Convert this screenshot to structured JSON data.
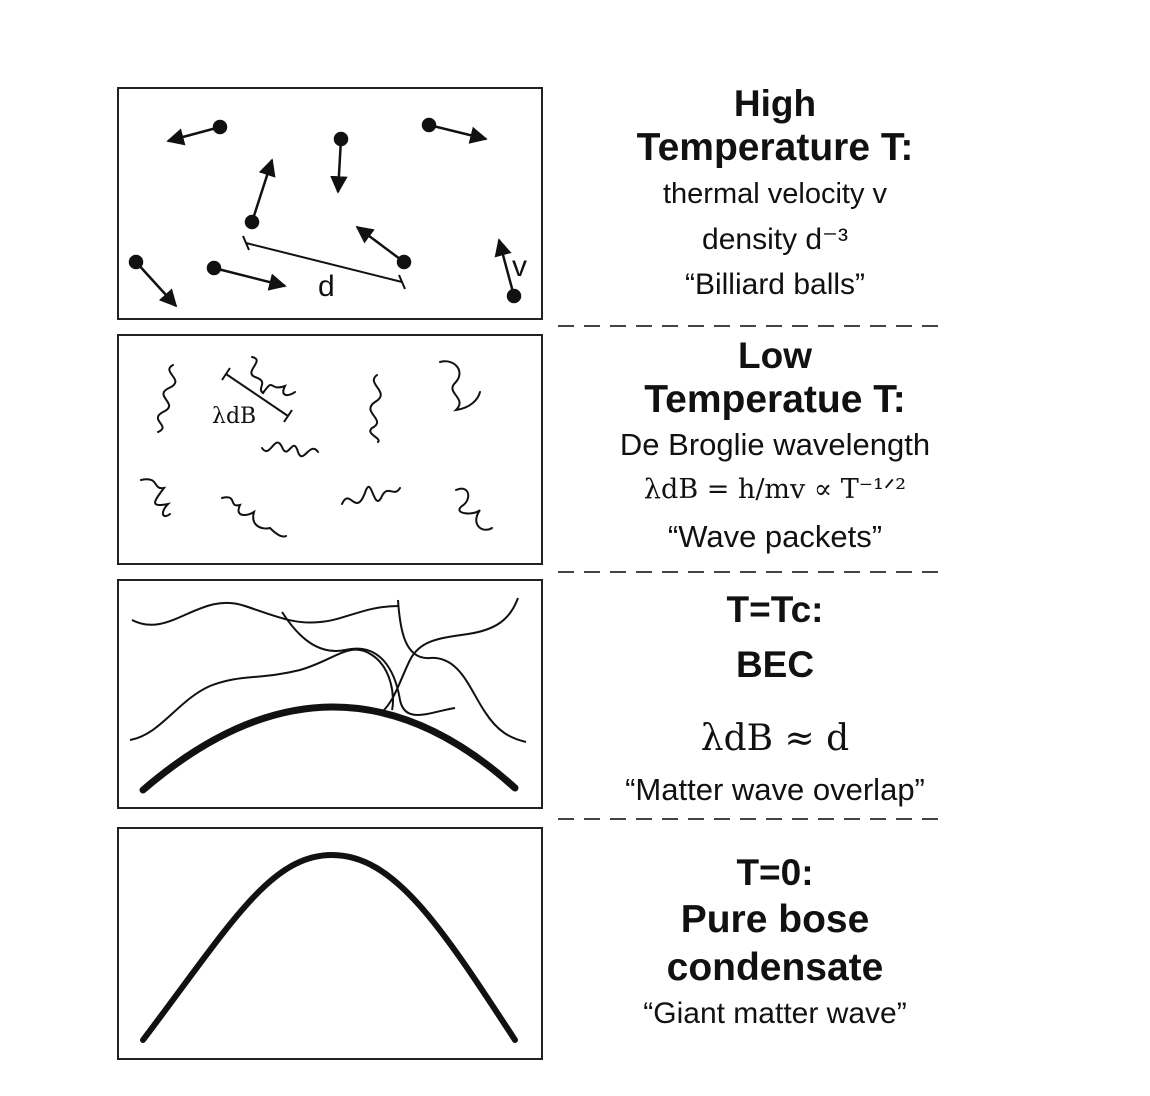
{
  "panels": [
    {
      "title_lines": [
        "High",
        "Temperature T:"
      ],
      "desc": "thermal velocity v",
      "density": "density  d⁻³",
      "quote": "“Billiard balls”",
      "diagram_labels": {
        "distance": "d",
        "velocity": "v"
      }
    },
    {
      "title_lines": [
        "Low",
        "Temperatue T:"
      ],
      "desc": "De Broglie wavelength",
      "formula": "λdB = h/mv ∝ T⁻¹ᐟ²",
      "quote": "“Wave packets”",
      "diagram_labels": {
        "wavelength": "λdB"
      }
    },
    {
      "title_lines": [
        "T=Tc:",
        "BEC"
      ],
      "formula": "λdB ≈ d",
      "quote": "“Matter wave overlap”"
    },
    {
      "title_lines": [
        "T=0:",
        "Pure bose",
        "condensate"
      ],
      "quote": "“Giant matter wave”"
    }
  ]
}
